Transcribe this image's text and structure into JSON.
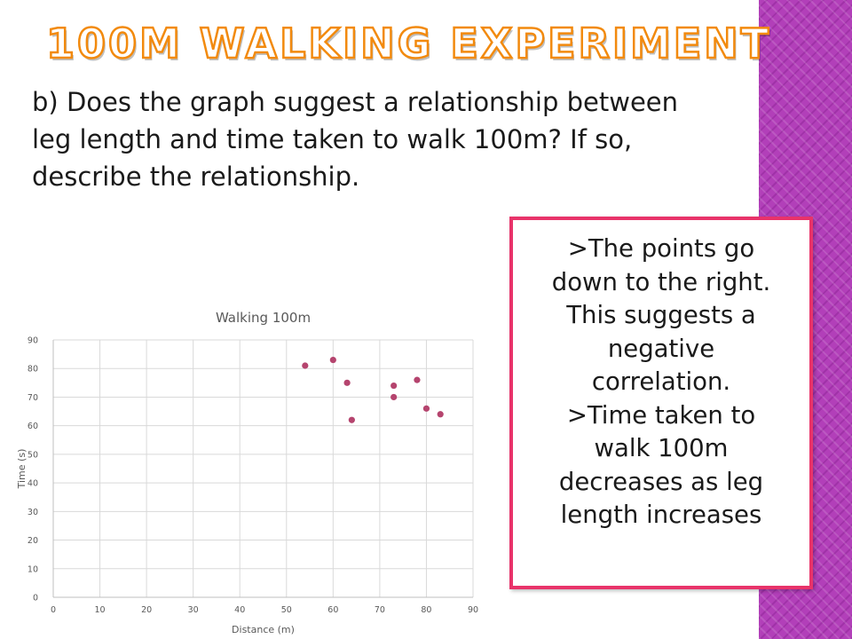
{
  "slide": {
    "title": "100M WALKING EXPERIMENT",
    "question": "b) Does the graph suggest a relationship between leg length and time taken to walk 100m? If so, describe the relationship.",
    "answer_lines": [
      ">The points go",
      "down to the right.",
      "This suggests a",
      "negative",
      "correlation.",
      ">Time taken to",
      "walk 100m",
      "decreases as leg",
      "length increases"
    ],
    "colors": {
      "title_outline": "#f28a0e",
      "answer_border": "#e8336a",
      "side_band": "#b23fb9",
      "marker": "#b5446e"
    }
  },
  "chart_data": {
    "type": "scatter",
    "title": "Walking 100m",
    "xlabel": "Distance  (m)",
    "ylabel": "Time (s)",
    "xlim": [
      0,
      90
    ],
    "ylim": [
      0,
      90
    ],
    "x_ticks": [
      0,
      10,
      20,
      30,
      40,
      50,
      60,
      70,
      80,
      90
    ],
    "y_ticks": [
      0,
      10,
      20,
      30,
      40,
      50,
      60,
      70,
      80,
      90
    ],
    "grid": true,
    "series": [
      {
        "points": [
          {
            "x": 54,
            "y": 81
          },
          {
            "x": 60,
            "y": 83
          },
          {
            "x": 63,
            "y": 75
          },
          {
            "x": 64,
            "y": 62
          },
          {
            "x": 73,
            "y": 74
          },
          {
            "x": 73,
            "y": 70
          },
          {
            "x": 78,
            "y": 76
          },
          {
            "x": 80,
            "y": 66
          },
          {
            "x": 83,
            "y": 64
          }
        ]
      }
    ]
  }
}
